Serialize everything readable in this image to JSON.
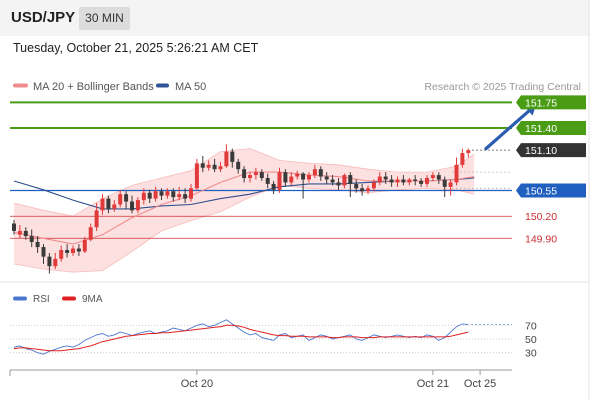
{
  "header": {
    "pair": "USD/JPY",
    "timeframe": "30 MIN"
  },
  "timestamp": "Tuesday, October 21, 2025 5:26:21 AM CET",
  "colors": {
    "bull": "#e03a3a",
    "bear": "#3a3a3a",
    "ma20": "#f08c8c",
    "band_fill": "#fcd5d5",
    "ma50": "#2f4f8f",
    "resistance": "#4a9c14",
    "pivot": "#1f5fbf",
    "support": "#cc3030",
    "current": "#333333",
    "rsi": "#4a78d0",
    "rsi_ma": "#e02020",
    "arrow": "#2a5db0"
  },
  "chart_data": [
    {
      "type": "candlestick",
      "legend": [
        {
          "label": "MA 20 + Bollinger Bands",
          "color": "#f08c8c"
        },
        {
          "label": "MA 50",
          "color": "#2f5597"
        }
      ],
      "credit": "Research © 2025 Trading Central",
      "ylim": [
        149.4,
        151.85
      ],
      "x_ticks": [
        {
          "label": "Oct 20",
          "index": 31
        },
        {
          "label": "Oct 21",
          "index": 71
        },
        {
          "label": "Oct 25",
          "index": 79
        }
      ],
      "levels": [
        {
          "value": 151.75,
          "label": "151.75",
          "kind": "resistance"
        },
        {
          "value": 151.4,
          "label": "151.40",
          "kind": "resistance"
        },
        {
          "value": 151.1,
          "label": "151.10",
          "kind": "current"
        },
        {
          "value": 150.55,
          "label": "150.55",
          "kind": "pivot"
        },
        {
          "value": 150.2,
          "label": "150.20",
          "kind": "support"
        },
        {
          "value": 149.9,
          "label": "149.90",
          "kind": "support"
        }
      ],
      "forecast_arrow": {
        "from_index": 80,
        "from": 151.12,
        "to_index": 88.5,
        "to": 151.72
      },
      "candles": [
        [
          150.1,
          150.15,
          150.0,
          149.95
        ],
        [
          149.95,
          150.08,
          150.0,
          149.9
        ],
        [
          150.0,
          150.05,
          149.93,
          149.88
        ],
        [
          149.93,
          150.02,
          149.85,
          149.78
        ],
        [
          149.85,
          149.93,
          149.78,
          149.7
        ],
        [
          149.78,
          149.82,
          149.65,
          149.55
        ],
        [
          149.65,
          149.7,
          149.52,
          149.42
        ],
        [
          149.52,
          149.7,
          149.62,
          149.48
        ],
        [
          149.62,
          149.8,
          149.74,
          149.58
        ],
        [
          149.74,
          149.82,
          149.7,
          149.64
        ],
        [
          149.7,
          149.8,
          149.76,
          149.66
        ],
        [
          149.76,
          149.82,
          149.72,
          149.66
        ],
        [
          149.72,
          149.92,
          149.88,
          149.7
        ],
        [
          149.88,
          150.1,
          150.05,
          149.86
        ],
        [
          150.05,
          150.38,
          150.28,
          150.0
        ],
        [
          150.28,
          150.5,
          150.44,
          150.22
        ],
        [
          150.44,
          150.48,
          150.3,
          150.24
        ],
        [
          150.3,
          150.42,
          150.36,
          150.26
        ],
        [
          150.36,
          150.56,
          150.5,
          150.32
        ],
        [
          150.5,
          150.54,
          150.4,
          150.3
        ],
        [
          150.4,
          150.48,
          150.28,
          150.24
        ],
        [
          150.28,
          150.46,
          150.42,
          150.24
        ],
        [
          150.42,
          150.58,
          150.52,
          150.36
        ],
        [
          150.52,
          150.56,
          150.44,
          150.38
        ],
        [
          150.44,
          150.6,
          150.54,
          150.4
        ],
        [
          150.54,
          150.58,
          150.48,
          150.42
        ],
        [
          150.48,
          150.58,
          150.54,
          150.44
        ],
        [
          150.54,
          150.58,
          150.46,
          150.4
        ],
        [
          150.46,
          150.6,
          150.5,
          150.42
        ],
        [
          150.5,
          150.58,
          150.44,
          150.38
        ],
        [
          150.44,
          150.64,
          150.58,
          150.4
        ],
        [
          150.58,
          150.98,
          150.92,
          150.55
        ],
        [
          150.92,
          151.02,
          150.86,
          150.8
        ],
        [
          150.86,
          150.96,
          150.9,
          150.82
        ],
        [
          150.9,
          150.98,
          150.84,
          150.8
        ],
        [
          150.84,
          150.94,
          150.88,
          150.8
        ],
        [
          150.88,
          151.18,
          151.08,
          150.86
        ],
        [
          151.08,
          151.12,
          150.94,
          150.86
        ],
        [
          150.94,
          150.98,
          150.84,
          150.78
        ],
        [
          150.84,
          150.88,
          150.72,
          150.66
        ],
        [
          150.72,
          150.8,
          150.76,
          150.66
        ],
        [
          150.76,
          150.86,
          150.8,
          150.7
        ],
        [
          150.8,
          150.84,
          150.72,
          150.68
        ],
        [
          150.72,
          150.78,
          150.64,
          150.58
        ],
        [
          150.64,
          150.68,
          150.56,
          150.5
        ],
        [
          150.56,
          150.86,
          150.8,
          150.52
        ],
        [
          150.8,
          150.84,
          150.66,
          150.6
        ],
        [
          150.66,
          150.8,
          150.74,
          150.62
        ],
        [
          150.74,
          150.82,
          150.78,
          150.7
        ],
        [
          150.78,
          150.8,
          150.7,
          150.44
        ],
        [
          150.7,
          150.8,
          150.76,
          150.66
        ],
        [
          150.76,
          150.9,
          150.84,
          150.72
        ],
        [
          150.84,
          150.88,
          150.74,
          150.68
        ],
        [
          150.74,
          150.8,
          150.7,
          150.64
        ],
        [
          150.7,
          150.76,
          150.66,
          150.62
        ],
        [
          150.66,
          150.72,
          150.62,
          150.56
        ],
        [
          150.62,
          150.78,
          150.76,
          150.58
        ],
        [
          150.76,
          150.8,
          150.64,
          150.46
        ],
        [
          150.64,
          150.7,
          150.58,
          150.52
        ],
        [
          150.58,
          150.64,
          150.54,
          150.48
        ],
        [
          150.54,
          150.62,
          150.58,
          150.5
        ],
        [
          150.58,
          150.7,
          150.66,
          150.54
        ],
        [
          150.66,
          150.8,
          150.74,
          150.62
        ],
        [
          150.74,
          150.8,
          150.7,
          150.64
        ],
        [
          150.7,
          150.76,
          150.66,
          150.6
        ],
        [
          150.66,
          150.74,
          150.7,
          150.6
        ],
        [
          150.7,
          150.76,
          150.66,
          150.62
        ],
        [
          150.66,
          150.72,
          150.7,
          150.62
        ],
        [
          150.7,
          150.76,
          150.68,
          150.62
        ],
        [
          150.68,
          150.72,
          150.64,
          150.6
        ],
        [
          150.64,
          150.76,
          150.72,
          150.6
        ],
        [
          150.72,
          150.8,
          150.76,
          150.68
        ],
        [
          150.76,
          150.8,
          150.7,
          150.64
        ],
        [
          150.7,
          150.74,
          150.6,
          150.46
        ],
        [
          150.6,
          150.7,
          150.66,
          150.48
        ],
        [
          150.66,
          151.0,
          150.9,
          150.62
        ],
        [
          150.9,
          151.12,
          151.06,
          150.86
        ],
        [
          151.06,
          151.12,
          151.1,
          151.0
        ]
      ],
      "ma20": [
        [
          0,
          149.98
        ],
        [
          5,
          149.9
        ],
        [
          10,
          149.82
        ],
        [
          15,
          149.95
        ],
        [
          20,
          150.18
        ],
        [
          25,
          150.36
        ],
        [
          30,
          150.48
        ],
        [
          35,
          150.66
        ],
        [
          40,
          150.8
        ],
        [
          45,
          150.8
        ],
        [
          50,
          150.76
        ],
        [
          55,
          150.74
        ],
        [
          60,
          150.68
        ],
        [
          65,
          150.68
        ],
        [
          70,
          150.68
        ],
        [
          75,
          150.7
        ],
        [
          78,
          150.74
        ]
      ],
      "bb_upper": [
        [
          0,
          150.38
        ],
        [
          5,
          150.28
        ],
        [
          10,
          150.2
        ],
        [
          15,
          150.44
        ],
        [
          20,
          150.62
        ],
        [
          25,
          150.72
        ],
        [
          30,
          150.82
        ],
        [
          35,
          151.08
        ],
        [
          40,
          151.12
        ],
        [
          45,
          150.96
        ],
        [
          50,
          150.92
        ],
        [
          55,
          150.9
        ],
        [
          60,
          150.84
        ],
        [
          65,
          150.8
        ],
        [
          70,
          150.8
        ],
        [
          75,
          150.88
        ],
        [
          78,
          151.05
        ]
      ],
      "bb_lower": [
        [
          0,
          149.55
        ],
        [
          5,
          149.48
        ],
        [
          10,
          149.44
        ],
        [
          15,
          149.46
        ],
        [
          20,
          149.72
        ],
        [
          25,
          150.0
        ],
        [
          30,
          150.14
        ],
        [
          35,
          150.26
        ],
        [
          40,
          150.46
        ],
        [
          45,
          150.62
        ],
        [
          50,
          150.58
        ],
        [
          55,
          150.56
        ],
        [
          60,
          150.52
        ],
        [
          65,
          150.56
        ],
        [
          70,
          150.58
        ],
        [
          75,
          150.56
        ],
        [
          78,
          150.5
        ]
      ],
      "ma50": [
        [
          0,
          150.68
        ],
        [
          5,
          150.56
        ],
        [
          10,
          150.42
        ],
        [
          15,
          150.3
        ],
        [
          20,
          150.3
        ],
        [
          25,
          150.34
        ],
        [
          30,
          150.36
        ],
        [
          35,
          150.44
        ],
        [
          40,
          150.5
        ],
        [
          45,
          150.6
        ],
        [
          50,
          150.64
        ],
        [
          55,
          150.64
        ],
        [
          60,
          150.66
        ],
        [
          65,
          150.68
        ],
        [
          70,
          150.68
        ],
        [
          75,
          150.7
        ],
        [
          78,
          150.72
        ]
      ]
    },
    {
      "type": "line",
      "legend": [
        {
          "label": "RSI",
          "color": "#4a78d0"
        },
        {
          "label": "9MA",
          "color": "#e02020"
        }
      ],
      "ylim": [
        15,
        85
      ],
      "y_ticks": [
        70,
        50,
        30
      ],
      "series": [
        {
          "name": "RSI",
          "values": [
            38,
            40,
            36,
            34,
            30,
            28,
            32,
            35,
            38,
            40,
            38,
            42,
            48,
            52,
            56,
            58,
            54,
            56,
            60,
            58,
            55,
            58,
            60,
            62,
            58,
            60,
            62,
            66,
            64,
            62,
            66,
            70,
            72,
            68,
            70,
            74,
            78,
            72,
            66,
            60,
            56,
            58,
            52,
            50,
            48,
            56,
            58,
            52,
            54,
            56,
            48,
            52,
            56,
            54,
            50,
            52,
            54,
            56,
            50,
            48,
            52,
            56,
            54,
            52,
            54,
            56,
            54,
            52,
            54,
            52,
            56,
            54,
            48,
            52,
            60,
            68,
            72,
            71
          ]
        },
        {
          "name": "9MA",
          "values": [
            36,
            37,
            37,
            36,
            35,
            34,
            33,
            33,
            33,
            34,
            35,
            36,
            38,
            40,
            43,
            46,
            48,
            50,
            52,
            54,
            55,
            56,
            57,
            58,
            58,
            59,
            59,
            60,
            61,
            62,
            63,
            64,
            65,
            66,
            67,
            68,
            70,
            70,
            69,
            67,
            64,
            62,
            60,
            58,
            56,
            55,
            55,
            54,
            54,
            54,
            53,
            53,
            53,
            53,
            52,
            52,
            53,
            53,
            53,
            52,
            52,
            52,
            53,
            53,
            53,
            53,
            53,
            53,
            53,
            53,
            53,
            53,
            53,
            53,
            54,
            56,
            58,
            60
          ]
        }
      ]
    }
  ]
}
